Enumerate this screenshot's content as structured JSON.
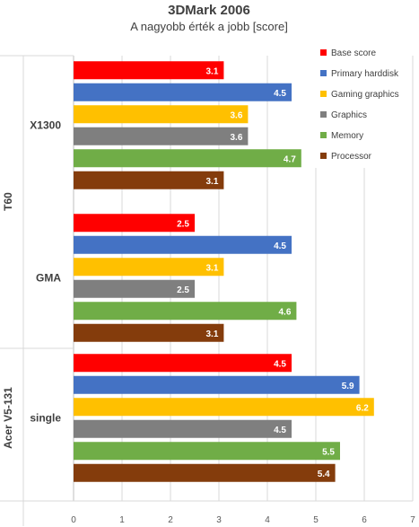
{
  "chart_data": {
    "type": "bar",
    "orientation": "horizontal",
    "title": "3DMark 2006",
    "subtitle": "A nagyobb érték a jobb [score]",
    "xlim": [
      0,
      7
    ],
    "x_ticks": [
      "0",
      "1",
      "2",
      "3",
      "4",
      "5",
      "6",
      "7"
    ],
    "grid": true,
    "legend_position": "top-right",
    "groups": [
      {
        "name": "T60",
        "categories": [
          {
            "name": "X1300",
            "values": [
              3.1,
              4.5,
              3.6,
              3.6,
              4.7,
              3.1
            ]
          },
          {
            "name": "GMA",
            "values": [
              2.5,
              4.5,
              3.1,
              2.5,
              4.6,
              3.1
            ]
          }
        ]
      },
      {
        "name": "Acer V5-131",
        "categories": [
          {
            "name": "single",
            "values": [
              4.5,
              5.9,
              6.2,
              4.5,
              5.5,
              5.4
            ]
          }
        ]
      }
    ],
    "series": [
      {
        "name": "Base score",
        "color": "#ff0000"
      },
      {
        "name": "Primary harddisk",
        "color": "#4472c4"
      },
      {
        "name": "Gaming graphics",
        "color": "#ffc000"
      },
      {
        "name": "Graphics",
        "color": "#7f7f7f"
      },
      {
        "name": "Memory",
        "color": "#70ad47"
      },
      {
        "name": "Processor",
        "color": "#843c0c"
      }
    ]
  }
}
